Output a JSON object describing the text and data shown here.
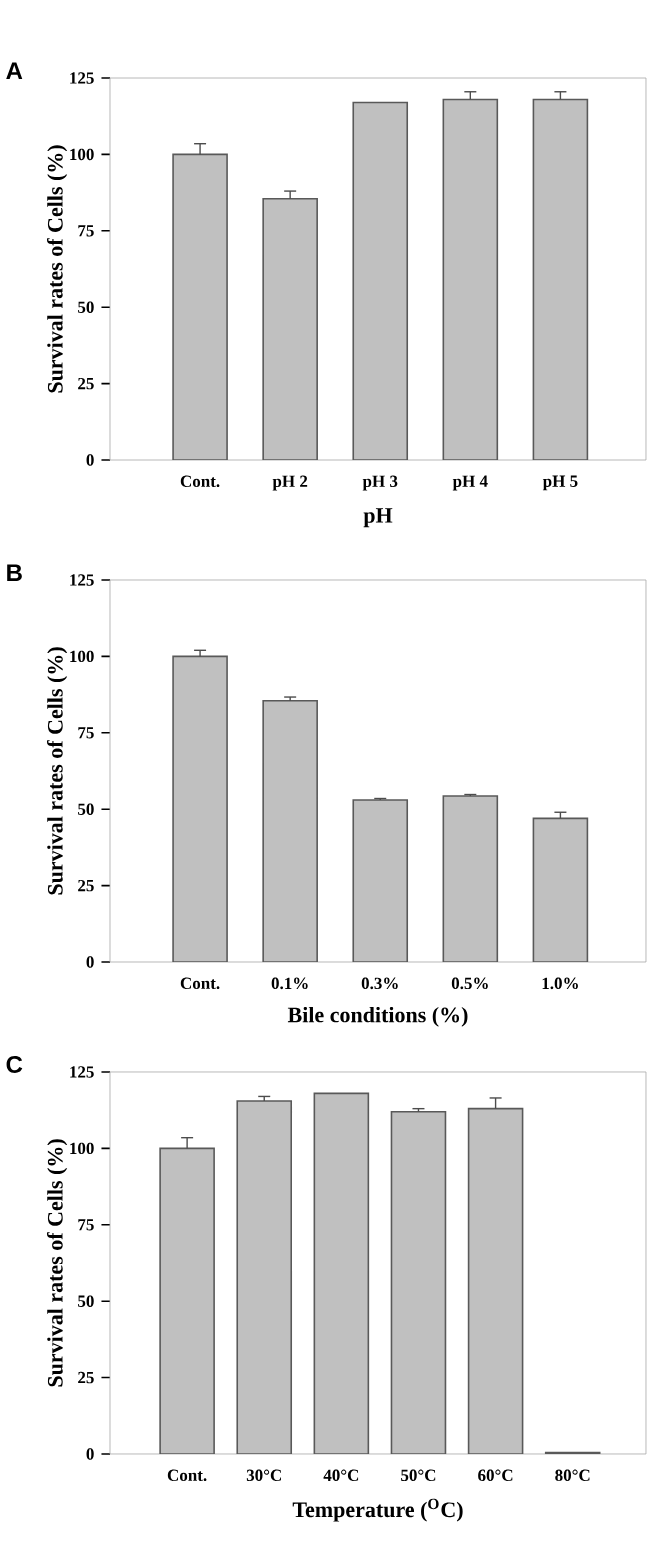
{
  "chart_data": [
    {
      "type": "bar",
      "title": "A",
      "xlabel": "pH",
      "ylabel": "Survival rates of Cells (%)",
      "categories": [
        "Cont.",
        "pH 2",
        "pH 3",
        "pH 4",
        "pH 5"
      ],
      "values": [
        100,
        85.5,
        117,
        118,
        118
      ],
      "errors": [
        3.5,
        2.5,
        null,
        2.5,
        2.5
      ],
      "color": "#c0c0c0",
      "ylim": [
        0,
        125
      ],
      "yticks": [
        0,
        25,
        50,
        75,
        100,
        125
      ]
    },
    {
      "type": "bar",
      "title": "B",
      "xlabel": "Bile conditions (%)",
      "ylabel": "Survival rates of Cells (%)",
      "categories": [
        "Cont.",
        "0.1%",
        "0.3%",
        "0.5%",
        "1.0%"
      ],
      "values": [
        100,
        85.5,
        53,
        54.3,
        47
      ],
      "errors": [
        2,
        1.2,
        0.5,
        0.5,
        2
      ],
      "color": "#c0c0c0",
      "ylim": [
        0,
        125
      ],
      "yticks": [
        0,
        25,
        50,
        75,
        100,
        125
      ]
    },
    {
      "type": "bar",
      "title": "C",
      "xlabel": "Temperature ($^{O}$C)",
      "ylabel": "Survival rates of Cells (%)",
      "categories": [
        "Cont.",
        "30°C",
        "40°C",
        "50°C",
        "60°C",
        "80°C"
      ],
      "values": [
        100,
        115.5,
        118,
        112,
        113,
        0.5
      ],
      "errors": [
        3.5,
        1.5,
        null,
        1,
        3.5,
        null
      ],
      "color": "#c0c0c0",
      "ylim": [
        0,
        125
      ],
      "yticks": [
        0,
        25,
        50,
        75,
        100,
        125
      ]
    }
  ]
}
